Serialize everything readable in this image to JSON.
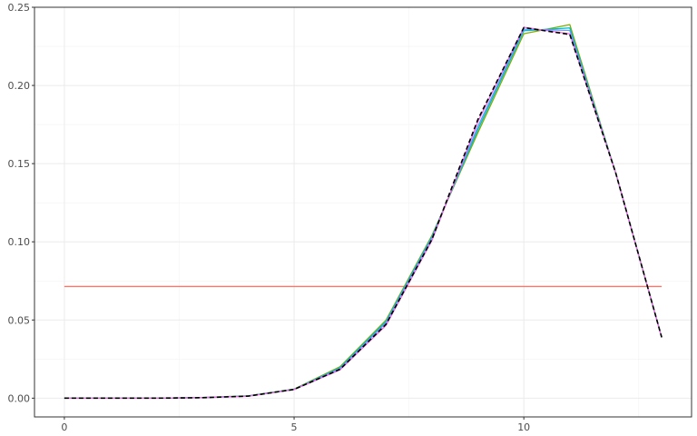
{
  "chart_data": {
    "type": "line",
    "title": "",
    "xlabel": "",
    "ylabel": "",
    "xlim": [
      -0.65,
      13.65
    ],
    "ylim": [
      -0.012,
      0.25
    ],
    "x_ticks": [
      0,
      5,
      10
    ],
    "y_ticks": [
      0.0,
      0.05,
      0.1,
      0.15,
      0.2,
      0.25
    ],
    "y_tick_labels": [
      "0.00",
      "0.05",
      "0.10",
      "0.15",
      "0.20",
      "0.25"
    ],
    "grid": true,
    "legend": "none",
    "x": [
      0,
      1,
      2,
      3,
      4,
      5,
      6,
      7,
      8,
      9,
      10,
      11,
      12,
      13
    ],
    "series": [
      {
        "color": "#F8766D",
        "dash": "solid",
        "values": [
          0.0714,
          0.0714,
          0.0714,
          0.0714,
          0.0714,
          0.0714,
          0.0714,
          0.0714,
          0.0714,
          0.0714,
          0.0714,
          0.0714,
          0.0714,
          0.0714
        ]
      },
      {
        "color": "#7CAE00",
        "dash": "solid",
        "values": [
          0.0,
          0.0,
          0.0,
          0.0004,
          0.0015,
          0.0058,
          0.0201,
          0.0499,
          0.1041,
          0.1698,
          0.2331,
          0.2389,
          0.144,
          0.0389
        ]
      },
      {
        "color": "#00BFC4",
        "dash": "solid",
        "values": [
          0.0,
          0.0,
          0.0,
          0.0004,
          0.0014,
          0.0057,
          0.0195,
          0.049,
          0.1033,
          0.1718,
          0.235,
          0.2368,
          0.144,
          0.0389
        ]
      },
      {
        "color": "#619CFF",
        "dash": "solid",
        "values": [
          0.0,
          0.0,
          0.0,
          0.0003,
          0.0013,
          0.0056,
          0.019,
          0.0482,
          0.1026,
          0.1738,
          0.236,
          0.2352,
          0.144,
          0.0389
        ]
      },
      {
        "color": "#F564E3",
        "dash": "solid",
        "values": [
          0.0,
          0.0,
          0.0,
          0.0003,
          0.0012,
          0.0055,
          0.0181,
          0.0466,
          0.1009,
          0.1768,
          0.2372,
          0.233,
          0.144,
          0.0389
        ]
      },
      {
        "color": "#000000",
        "dash": "dashed",
        "values": [
          0.0,
          0.0,
          0.0,
          0.0003,
          0.0013,
          0.0056,
          0.0185,
          0.0472,
          0.1016,
          0.1782,
          0.237,
          0.2326,
          0.144,
          0.0389
        ]
      }
    ]
  }
}
